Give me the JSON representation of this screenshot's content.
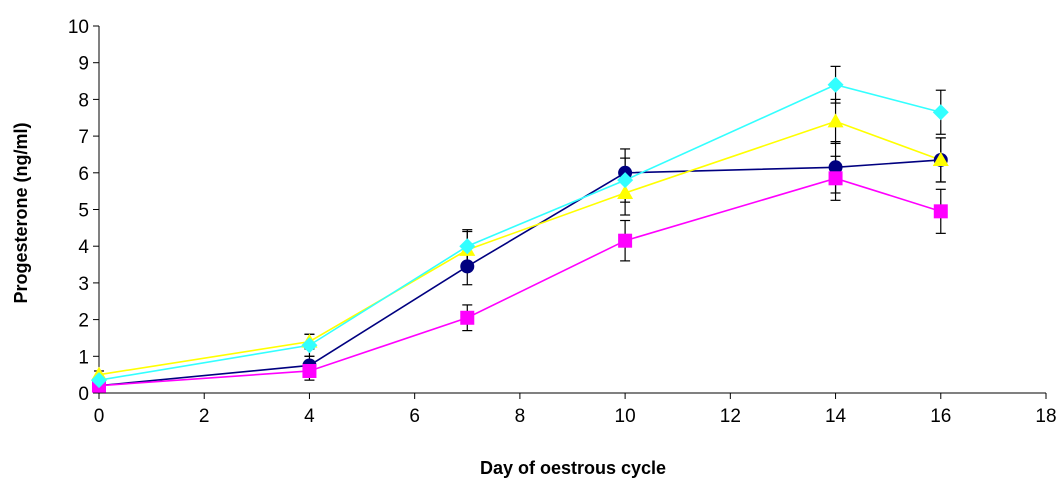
{
  "chart_data": {
    "type": "line",
    "title": "",
    "xlabel": "Day of oestrous cycle",
    "ylabel": "Progesterone (ng/ml)",
    "xlim": [
      0,
      18
    ],
    "ylim": [
      0,
      10
    ],
    "x_ticks": [
      0,
      2,
      4,
      6,
      8,
      10,
      12,
      14,
      16,
      18
    ],
    "y_ticks": [
      0,
      1,
      2,
      3,
      4,
      5,
      6,
      7,
      8,
      9,
      10
    ],
    "x_tick_labels": [
      "0",
      "2",
      "4",
      "6",
      "8",
      "10",
      "12",
      "14",
      "16",
      "18"
    ],
    "y_tick_labels": [
      "0",
      "1",
      "2",
      "3",
      "4",
      "5",
      "6",
      "7",
      "8",
      "9",
      "10"
    ],
    "grid": false,
    "legend": "none",
    "series": [
      {
        "marker": "circle",
        "color": "#000080",
        "x": [
          0,
          4,
          7,
          10,
          14,
          16
        ],
        "y": [
          0.2,
          0.75,
          3.45,
          6.0,
          6.15,
          6.35
        ],
        "err": [
          0.1,
          0.25,
          0.5,
          0.65,
          0.7,
          0.6
        ]
      },
      {
        "marker": "square",
        "color": "#ff00ff",
        "x": [
          0,
          4,
          7,
          10,
          14,
          16
        ],
        "y": [
          0.2,
          0.6,
          2.05,
          4.15,
          5.85,
          4.95
        ],
        "err": [
          0.1,
          0.25,
          0.35,
          0.55,
          0.6,
          0.6
        ]
      },
      {
        "marker": "triangle",
        "color": "#ffff00",
        "x": [
          0,
          4,
          7,
          10,
          14,
          16
        ],
        "y": [
          0.5,
          1.4,
          3.9,
          5.45,
          7.4,
          6.35
        ],
        "err": [
          0.1,
          0.2,
          0.5,
          0.6,
          0.6,
          0.6
        ]
      },
      {
        "marker": "diamond",
        "color": "#33ffff",
        "x": [
          0,
          4,
          7,
          10,
          14,
          16
        ],
        "y": [
          0.35,
          1.3,
          4.0,
          5.8,
          8.4,
          7.65
        ],
        "err": [
          0.1,
          0.3,
          0.45,
          0.6,
          0.5,
          0.6
        ]
      }
    ]
  }
}
